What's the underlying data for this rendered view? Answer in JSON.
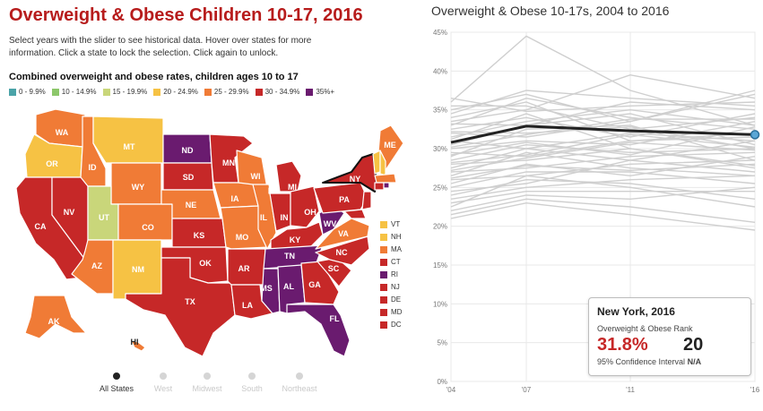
{
  "left": {
    "title": "Overweight & Obese Children 10-17, 2016",
    "intro_line1": "Select years with the slider to see historical data. Hover over states for more",
    "intro_line2": "information. Click a state to lock the selection. Click again to unlock.",
    "subtitle": "Combined overweight and obese rates, children ages 10 to 17",
    "legend": [
      {
        "label": "0 - 9.9%",
        "color": "#4aa3a8"
      },
      {
        "label": "10 - 14.9%",
        "color": "#8cc76a"
      },
      {
        "label": "15 - 19.9%",
        "color": "#c9d67a"
      },
      {
        "label": "20 - 24.9%",
        "color": "#f6c244"
      },
      {
        "label": "25 - 29.9%",
        "color": "#f07b36"
      },
      {
        "label": "30 - 34.9%",
        "color": "#c62828"
      },
      {
        "label": "35%+",
        "color": "#6a1b6f"
      }
    ],
    "states": {
      "WA": "WA",
      "OR": "OR",
      "CA": "CA",
      "NV": "NV",
      "ID": "ID",
      "MT": "MT",
      "WY": "WY",
      "UT": "UT",
      "CO": "CO",
      "AZ": "AZ",
      "NM": "NM",
      "ND": "ND",
      "SD": "SD",
      "NE": "NE",
      "KS": "KS",
      "OK": "OK",
      "TX": "TX",
      "MN": "MN",
      "IA": "IA",
      "MO": "MO",
      "AR": "AR",
      "LA": "LA",
      "WI": "WI",
      "IL": "IL",
      "MI": "MI",
      "IN": "IN",
      "OH": "OH",
      "KY": "KY",
      "TN": "TN",
      "MS": "MS",
      "AL": "AL",
      "GA": "GA",
      "FL": "FL",
      "SC": "SC",
      "NC": "NC",
      "VA": "VA",
      "WV": "WV",
      "PA": "PA",
      "NY": "NY",
      "ME": "ME",
      "AK": "AK",
      "HI": "HI"
    },
    "small_states": [
      {
        "label": "VT",
        "color": "#f6c244"
      },
      {
        "label": "NH",
        "color": "#f6c244"
      },
      {
        "label": "MA",
        "color": "#f07b36"
      },
      {
        "label": "CT",
        "color": "#c62828"
      },
      {
        "label": "RI",
        "color": "#6a1b6f"
      },
      {
        "label": "NJ",
        "color": "#c62828"
      },
      {
        "label": "DE",
        "color": "#c62828"
      },
      {
        "label": "MD",
        "color": "#c62828"
      },
      {
        "label": "DC",
        "color": "#c62828"
      }
    ],
    "regions": [
      "All States",
      "West",
      "Midwest",
      "South",
      "Northeast"
    ],
    "active_region": "All States"
  },
  "right": {
    "title": "Overweight & Obese 10-17s, 2004 to 2016",
    "tooltip": {
      "title": "New York, 2016",
      "rank_label": "Overweight & Obese Rank",
      "value": "31.8%",
      "rank": "20",
      "ci_label": "95% Confidence Interval",
      "ci_value": "N/A"
    }
  },
  "chart_data": {
    "type": "line",
    "title": "Overweight & Obese 10-17s, 2004 to 2016",
    "x": [
      "'04",
      "'07",
      "'11",
      "'16"
    ],
    "ylim": [
      0,
      45
    ],
    "y_ticks": [
      "0%",
      "5%",
      "10%",
      "15%",
      "20%",
      "25%",
      "30%",
      "35%",
      "40%",
      "45%"
    ],
    "highlight": {
      "name": "New York",
      "values": [
        30.8,
        32.9,
        32.3,
        31.8
      ]
    },
    "background_series": [
      [
        36.0,
        44.5,
        37.5,
        33.0
      ],
      [
        34.5,
        37.5,
        36.5,
        35.5
      ],
      [
        33.5,
        35.0,
        39.5,
        36.5
      ],
      [
        33.0,
        36.5,
        34.0,
        32.5
      ],
      [
        32.5,
        34.0,
        31.5,
        34.5
      ],
      [
        32.0,
        31.5,
        33.5,
        37.5
      ],
      [
        31.5,
        33.5,
        35.0,
        33.0
      ],
      [
        31.0,
        30.0,
        32.0,
        31.0
      ],
      [
        30.5,
        33.0,
        34.5,
        30.5
      ],
      [
        30.0,
        31.0,
        30.5,
        33.5
      ],
      [
        29.5,
        29.0,
        31.0,
        31.5
      ],
      [
        29.0,
        32.5,
        33.0,
        28.5
      ],
      [
        28.5,
        30.5,
        29.5,
        30.0
      ],
      [
        28.0,
        28.5,
        30.0,
        27.5
      ],
      [
        27.5,
        30.0,
        28.5,
        31.0
      ],
      [
        27.0,
        27.5,
        29.0,
        29.5
      ],
      [
        26.5,
        29.5,
        27.5,
        26.5
      ],
      [
        26.0,
        26.5,
        28.0,
        28.5
      ],
      [
        25.5,
        28.0,
        26.5,
        29.0
      ],
      [
        25.0,
        27.0,
        27.0,
        25.5
      ],
      [
        24.5,
        25.5,
        28.5,
        27.0
      ],
      [
        24.0,
        26.0,
        25.5,
        23.5
      ],
      [
        23.5,
        25.0,
        26.0,
        26.5
      ],
      [
        23.0,
        24.5,
        24.5,
        24.5
      ],
      [
        22.5,
        26.5,
        25.0,
        22.5
      ],
      [
        22.0,
        24.0,
        23.5,
        25.0
      ],
      [
        21.5,
        23.5,
        22.5,
        20.5
      ],
      [
        21.0,
        23.0,
        21.5,
        19.5
      ],
      [
        35.5,
        35.5,
        32.5,
        34.0
      ],
      [
        34.0,
        36.0,
        31.0,
        32.0
      ],
      [
        33.2,
        33.0,
        36.0,
        35.0
      ],
      [
        32.2,
        32.0,
        32.8,
        30.0
      ],
      [
        31.2,
        34.5,
        30.0,
        27.8
      ],
      [
        30.2,
        31.8,
        33.8,
        33.8
      ],
      [
        29.2,
        30.8,
        29.2,
        32.8
      ],
      [
        28.2,
        29.2,
        31.8,
        30.2
      ],
      [
        27.2,
        28.8,
        30.8,
        29.8
      ],
      [
        26.2,
        27.8,
        27.2,
        28.0
      ],
      [
        35.0,
        37.0,
        33.5,
        37.0
      ],
      [
        36.5,
        34.8,
        35.5,
        36.0
      ]
    ]
  }
}
